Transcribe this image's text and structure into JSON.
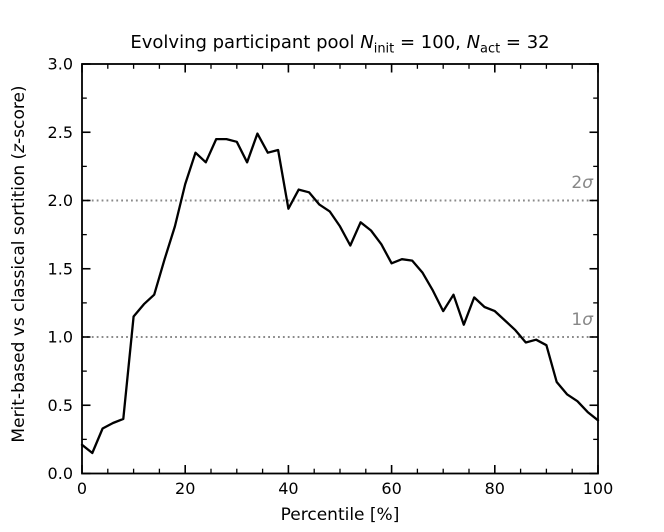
{
  "figure": {
    "title": {
      "pre": "Evolving participant pool ",
      "var1": "N",
      "sub1": "init",
      "mid": " = 100, ",
      "var2": "N",
      "sub2": "act",
      "post": " = 32"
    },
    "x_axis": {
      "label": "Percentile [%]",
      "range": [
        0,
        100
      ],
      "ticks": [
        {
          "v": 0,
          "label": "0"
        },
        {
          "v": 20,
          "label": "20"
        },
        {
          "v": 40,
          "label": "40"
        },
        {
          "v": 60,
          "label": "60"
        },
        {
          "v": 80,
          "label": "80"
        },
        {
          "v": 100,
          "label": "100"
        }
      ],
      "minor_step": 5
    },
    "y_axis": {
      "label_pre": "Merit-based vs classical sortition (",
      "label_var": "z",
      "label_post": "-score)",
      "range": [
        0,
        3
      ],
      "ticks": [
        {
          "v": 0.0,
          "label": "0.0"
        },
        {
          "v": 0.5,
          "label": "0.5"
        },
        {
          "v": 1.0,
          "label": "1.0"
        },
        {
          "v": 1.5,
          "label": "1.5"
        },
        {
          "v": 2.0,
          "label": "2.0"
        },
        {
          "v": 2.5,
          "label": "2.5"
        },
        {
          "v": 3.0,
          "label": "3.0"
        }
      ],
      "minor_step": 0.25
    },
    "reference_lines": [
      {
        "value": 2.0,
        "coef": "2",
        "symbol": "σ"
      },
      {
        "value": 1.0,
        "coef": "1",
        "symbol": "σ"
      }
    ],
    "colors": {
      "curve": "#000000",
      "reference": "#8a8a8a",
      "reference_text": "#878787",
      "axis": "#000000",
      "background": "#ffffff"
    }
  },
  "chart_data": {
    "type": "line",
    "title": "Evolving participant pool N_init = 100, N_act = 32",
    "xlabel": "Percentile [%]",
    "ylabel": "Merit-based vs classical sortition (z-score)",
    "xlim": [
      0,
      100
    ],
    "ylim": [
      0,
      3
    ],
    "grid": "off",
    "legend": "none",
    "x": [
      0,
      2,
      4,
      6,
      8,
      10,
      12,
      14,
      16,
      18,
      20,
      22,
      24,
      26,
      28,
      30,
      32,
      34,
      36,
      38,
      40,
      42,
      44,
      46,
      48,
      50,
      52,
      54,
      56,
      58,
      60,
      62,
      64,
      66,
      68,
      70,
      72,
      74,
      76,
      78,
      80,
      82,
      84,
      86,
      88,
      90,
      92,
      94,
      96,
      98,
      100
    ],
    "series": [
      {
        "name": "merit-based vs classical sortition z-score",
        "color": "#000000",
        "values": [
          0.21,
          0.15,
          0.33,
          0.37,
          0.4,
          1.15,
          1.24,
          1.31,
          1.57,
          1.81,
          2.12,
          2.35,
          2.28,
          2.45,
          2.45,
          2.43,
          2.28,
          2.49,
          2.35,
          2.37,
          1.94,
          2.08,
          2.06,
          1.97,
          1.92,
          1.81,
          1.67,
          1.84,
          1.78,
          1.68,
          1.54,
          1.57,
          1.56,
          1.47,
          1.34,
          1.19,
          1.31,
          1.09,
          1.29,
          1.22,
          1.19,
          1.12,
          1.05,
          0.96,
          0.98,
          0.94,
          0.67,
          0.58,
          0.53,
          0.45,
          0.39
        ]
      }
    ],
    "reference_lines": [
      {
        "y": 2.0,
        "style": "dotted",
        "label": "2σ"
      },
      {
        "y": 1.0,
        "style": "dotted",
        "label": "1σ"
      }
    ]
  }
}
